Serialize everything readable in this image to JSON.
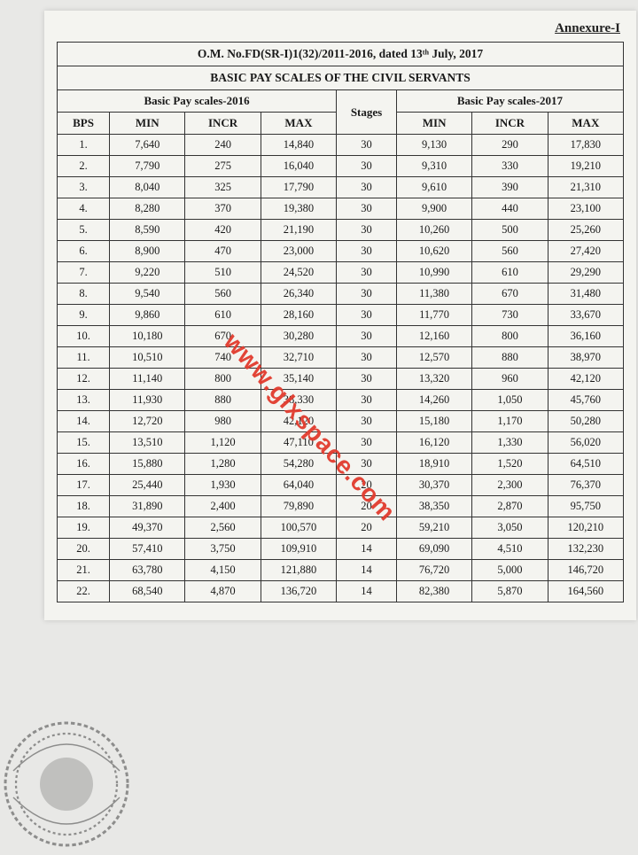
{
  "annexure": "Annexure-I",
  "header_line1": "O.M. No.FD(SR-I)1(32)/2011-2016, dated 13ᵗʰ July, 2017",
  "header_line2": "BASIC PAY SCALES OF THE CIVIL SERVANTS",
  "group_2016": "Basic Pay scales-2016",
  "group_stages": "Stages",
  "group_2017": "Basic Pay scales-2017",
  "col_bps": "BPS",
  "col_min": "MIN",
  "col_incr": "INCR",
  "col_max": "MAX",
  "watermark": "www.glxspace.com",
  "rows": [
    {
      "bps": "1.",
      "min16": "7,640",
      "incr16": "240",
      "max16": "14,840",
      "stg": "30",
      "min17": "9,130",
      "incr17": "290",
      "max17": "17,830"
    },
    {
      "bps": "2.",
      "min16": "7,790",
      "incr16": "275",
      "max16": "16,040",
      "stg": "30",
      "min17": "9,310",
      "incr17": "330",
      "max17": "19,210"
    },
    {
      "bps": "3.",
      "min16": "8,040",
      "incr16": "325",
      "max16": "17,790",
      "stg": "30",
      "min17": "9,610",
      "incr17": "390",
      "max17": "21,310"
    },
    {
      "bps": "4.",
      "min16": "8,280",
      "incr16": "370",
      "max16": "19,380",
      "stg": "30",
      "min17": "9,900",
      "incr17": "440",
      "max17": "23,100"
    },
    {
      "bps": "5.",
      "min16": "8,590",
      "incr16": "420",
      "max16": "21,190",
      "stg": "30",
      "min17": "10,260",
      "incr17": "500",
      "max17": "25,260"
    },
    {
      "bps": "6.",
      "min16": "8,900",
      "incr16": "470",
      "max16": "23,000",
      "stg": "30",
      "min17": "10,620",
      "incr17": "560",
      "max17": "27,420"
    },
    {
      "bps": "7.",
      "min16": "9,220",
      "incr16": "510",
      "max16": "24,520",
      "stg": "30",
      "min17": "10,990",
      "incr17": "610",
      "max17": "29,290"
    },
    {
      "bps": "8.",
      "min16": "9,540",
      "incr16": "560",
      "max16": "26,340",
      "stg": "30",
      "min17": "11,380",
      "incr17": "670",
      "max17": "31,480"
    },
    {
      "bps": "9.",
      "min16": "9,860",
      "incr16": "610",
      "max16": "28,160",
      "stg": "30",
      "min17": "11,770",
      "incr17": "730",
      "max17": "33,670"
    },
    {
      "bps": "10.",
      "min16": "10,180",
      "incr16": "670",
      "max16": "30,280",
      "stg": "30",
      "min17": "12,160",
      "incr17": "800",
      "max17": "36,160"
    },
    {
      "bps": "11.",
      "min16": "10,510",
      "incr16": "740",
      "max16": "32,710",
      "stg": "30",
      "min17": "12,570",
      "incr17": "880",
      "max17": "38,970"
    },
    {
      "bps": "12.",
      "min16": "11,140",
      "incr16": "800",
      "max16": "35,140",
      "stg": "30",
      "min17": "13,320",
      "incr17": "960",
      "max17": "42,120"
    },
    {
      "bps": "13.",
      "min16": "11,930",
      "incr16": "880",
      "max16": "38,330",
      "stg": "30",
      "min17": "14,260",
      "incr17": "1,050",
      "max17": "45,760"
    },
    {
      "bps": "14.",
      "min16": "12,720",
      "incr16": "980",
      "max16": "42,120",
      "stg": "30",
      "min17": "15,180",
      "incr17": "1,170",
      "max17": "50,280"
    },
    {
      "bps": "15.",
      "min16": "13,510",
      "incr16": "1,120",
      "max16": "47,110",
      "stg": "30",
      "min17": "16,120",
      "incr17": "1,330",
      "max17": "56,020"
    },
    {
      "bps": "16.",
      "min16": "15,880",
      "incr16": "1,280",
      "max16": "54,280",
      "stg": "30",
      "min17": "18,910",
      "incr17": "1,520",
      "max17": "64,510"
    },
    {
      "bps": "17.",
      "min16": "25,440",
      "incr16": "1,930",
      "max16": "64,040",
      "stg": "20",
      "min17": "30,370",
      "incr17": "2,300",
      "max17": "76,370"
    },
    {
      "bps": "18.",
      "min16": "31,890",
      "incr16": "2,400",
      "max16": "79,890",
      "stg": "20",
      "min17": "38,350",
      "incr17": "2,870",
      "max17": "95,750"
    },
    {
      "bps": "19.",
      "min16": "49,370",
      "incr16": "2,560",
      "max16": "100,570",
      "stg": "20",
      "min17": "59,210",
      "incr17": "3,050",
      "max17": "120,210"
    },
    {
      "bps": "20.",
      "min16": "57,410",
      "incr16": "3,750",
      "max16": "109,910",
      "stg": "14",
      "min17": "69,090",
      "incr17": "4,510",
      "max17": "132,230"
    },
    {
      "bps": "21.",
      "min16": "63,780",
      "incr16": "4,150",
      "max16": "121,880",
      "stg": "14",
      "min17": "76,720",
      "incr17": "5,000",
      "max17": "146,720"
    },
    {
      "bps": "22.",
      "min16": "68,540",
      "incr16": "4,870",
      "max16": "136,720",
      "stg": "14",
      "min17": "82,380",
      "incr17": "5,870",
      "max17": "164,560"
    }
  ]
}
